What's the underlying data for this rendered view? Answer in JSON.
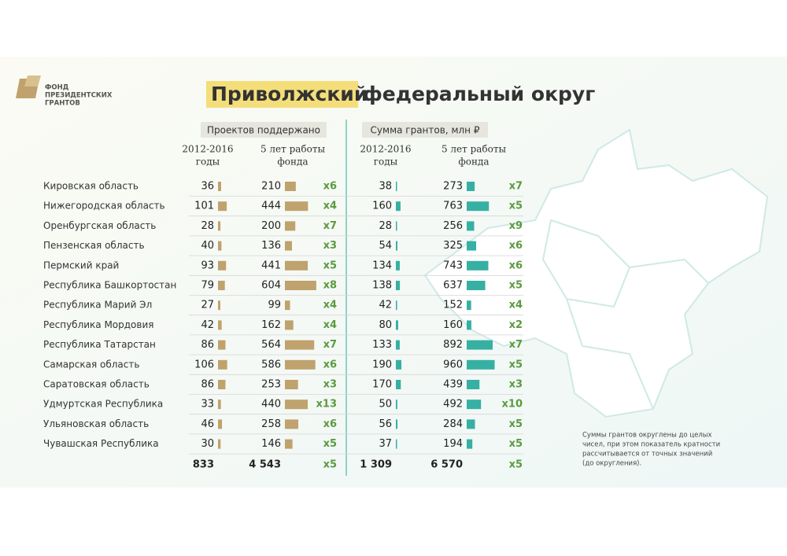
{
  "header": {
    "logo_lines": [
      "ФОНД",
      "ПРЕЗИДЕНТСКИХ",
      "ГРАНТОВ"
    ],
    "title_highlight": "Приволжский",
    "title_rest": "федеральный округ"
  },
  "groups": [
    {
      "title": "Проектов поддержано",
      "col1": [
        "2012-2016",
        "годы"
      ],
      "col2": [
        "5 лет работы",
        "фонда"
      ]
    },
    {
      "title": "Сумма грантов, млн ₽",
      "col1": [
        "2012-2016",
        "годы"
      ],
      "col2": [
        "5 лет работы",
        "фонда"
      ]
    }
  ],
  "rows": [
    {
      "name": "Кировская область",
      "p1": 36,
      "p2": 210,
      "px": "x6",
      "g1": 38,
      "g2": 273,
      "gx": "x7"
    },
    {
      "name": "Нижегородская область",
      "p1": 101,
      "p2": 444,
      "px": "x4",
      "g1": 160,
      "g2": 763,
      "gx": "x5"
    },
    {
      "name": "Оренбургская область",
      "p1": 28,
      "p2": 200,
      "px": "x7",
      "g1": 28,
      "g2": 256,
      "gx": "x9"
    },
    {
      "name": "Пензенская область",
      "p1": 40,
      "p2": 136,
      "px": "x3",
      "g1": 54,
      "g2": 325,
      "gx": "x6"
    },
    {
      "name": "Пермский край",
      "p1": 93,
      "p2": 441,
      "px": "x5",
      "g1": 134,
      "g2": 743,
      "gx": "x6"
    },
    {
      "name": "Республика Башкортостан",
      "p1": 79,
      "p2": 604,
      "px": "x8",
      "g1": 138,
      "g2": 637,
      "gx": "x5"
    },
    {
      "name": "Республика Марий Эл",
      "p1": 27,
      "p2": 99,
      "px": "x4",
      "g1": 42,
      "g2": 152,
      "gx": "x4"
    },
    {
      "name": "Республика Мордовия",
      "p1": 42,
      "p2": 162,
      "px": "x4",
      "g1": 80,
      "g2": 160,
      "gx": "x2"
    },
    {
      "name": "Республика Татарстан",
      "p1": 86,
      "p2": 564,
      "px": "x7",
      "g1": 133,
      "g2": 892,
      "gx": "x7"
    },
    {
      "name": "Самарская область",
      "p1": 106,
      "p2": 586,
      "px": "x6",
      "g1": 190,
      "g2": 960,
      "gx": "x5"
    },
    {
      "name": "Саратовская область",
      "p1": 86,
      "p2": 253,
      "px": "x3",
      "g1": 170,
      "g2": 439,
      "gx": "x3"
    },
    {
      "name": "Удмуртская Республика",
      "p1": 33,
      "p2": 440,
      "px": "x13",
      "g1": 50,
      "g2": 492,
      "gx": "x10"
    },
    {
      "name": "Ульяновская область",
      "p1": 46,
      "p2": 258,
      "px": "x6",
      "g1": 56,
      "g2": 284,
      "gx": "x5"
    },
    {
      "name": "Чувашская Республика",
      "p1": 30,
      "p2": 146,
      "px": "x5",
      "g1": 37,
      "g2": 194,
      "gx": "x5"
    }
  ],
  "totals": {
    "p1": "833",
    "p2": "4 543",
    "px": "x5",
    "g1": "1 309",
    "g2": "6 570",
    "gx": "x5"
  },
  "note_lines": [
    "Суммы грантов округлены до целых",
    "чисел, при этом показатель кратности",
    "рассчитывается от точных значений",
    "(до округления)."
  ]
}
